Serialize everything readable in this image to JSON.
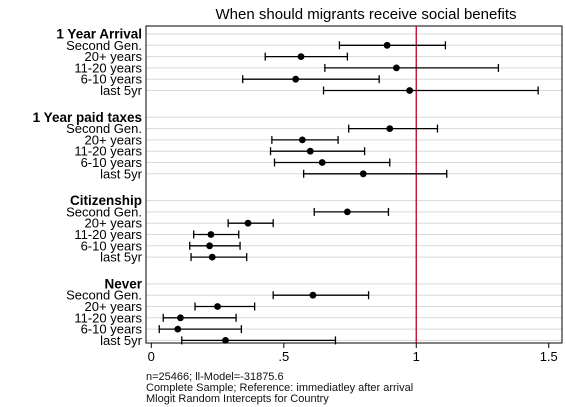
{
  "chart_data": {
    "type": "forest",
    "title": "When should migrants receive social benefits",
    "xlim": [
      -0.02,
      1.55
    ],
    "xticks": [
      {
        "value": 0,
        "label": "0"
      },
      {
        "value": 0.5,
        "label": ".5"
      },
      {
        "value": 1,
        "label": "1"
      },
      {
        "value": 1.5,
        "label": "1.5"
      }
    ],
    "reference_line": {
      "x": 1,
      "color": "#c0103a"
    },
    "grid": "horizontal",
    "groups": [
      {
        "name": "1 Year Arrival",
        "items": [
          {
            "label": "Second Gen.",
            "estimate": 0.89,
            "lower": 0.71,
            "upper": 1.11
          },
          {
            "label": "20+ years",
            "estimate": 0.565,
            "lower": 0.43,
            "upper": 0.74
          },
          {
            "label": "11-20 years",
            "estimate": 0.925,
            "lower": 0.655,
            "upper": 1.31
          },
          {
            "label": "6-10 years",
            "estimate": 0.545,
            "lower": 0.345,
            "upper": 0.86
          },
          {
            "label": "last 5yr",
            "estimate": 0.975,
            "lower": 0.65,
            "upper": 1.46
          }
        ]
      },
      {
        "name": "1 Year paid taxes",
        "items": [
          {
            "label": "Second Gen.",
            "estimate": 0.9,
            "lower": 0.745,
            "upper": 1.08
          },
          {
            "label": "20+ years",
            "estimate": 0.57,
            "lower": 0.455,
            "upper": 0.705
          },
          {
            "label": "11-20 years",
            "estimate": 0.6,
            "lower": 0.45,
            "upper": 0.805
          },
          {
            "label": "6-10 years",
            "estimate": 0.645,
            "lower": 0.465,
            "upper": 0.9
          },
          {
            "label": "last 5yr",
            "estimate": 0.8,
            "lower": 0.575,
            "upper": 1.115
          }
        ]
      },
      {
        "name": "Citizenship",
        "items": [
          {
            "label": "Second Gen.",
            "estimate": 0.74,
            "lower": 0.615,
            "upper": 0.895
          },
          {
            "label": "20+ years",
            "estimate": 0.365,
            "lower": 0.29,
            "upper": 0.46
          },
          {
            "label": "11-20 years",
            "estimate": 0.225,
            "lower": 0.16,
            "upper": 0.33
          },
          {
            "label": "6-10 years",
            "estimate": 0.22,
            "lower": 0.145,
            "upper": 0.335
          },
          {
            "label": "last 5yr",
            "estimate": 0.23,
            "lower": 0.15,
            "upper": 0.36
          }
        ]
      },
      {
        "name": "Never",
        "items": [
          {
            "label": "Second Gen.",
            "estimate": 0.61,
            "lower": 0.46,
            "upper": 0.82
          },
          {
            "label": "20+ years",
            "estimate": 0.25,
            "lower": 0.165,
            "upper": 0.39
          },
          {
            "label": "11-20 years",
            "estimate": 0.11,
            "lower": 0.045,
            "upper": 0.32
          },
          {
            "label": "6-10 years",
            "estimate": 0.1,
            "lower": 0.03,
            "upper": 0.34
          },
          {
            "label": "last 5yr",
            "estimate": 0.28,
            "lower": 0.115,
            "upper": 0.695
          }
        ]
      }
    ]
  },
  "notes": {
    "line1": "n=25466; ll-Model=-31875.6",
    "line2": "Complete Sample; Reference: immediatley after arrival",
    "line3": "Mlogit Random Intercepts for Country"
  }
}
